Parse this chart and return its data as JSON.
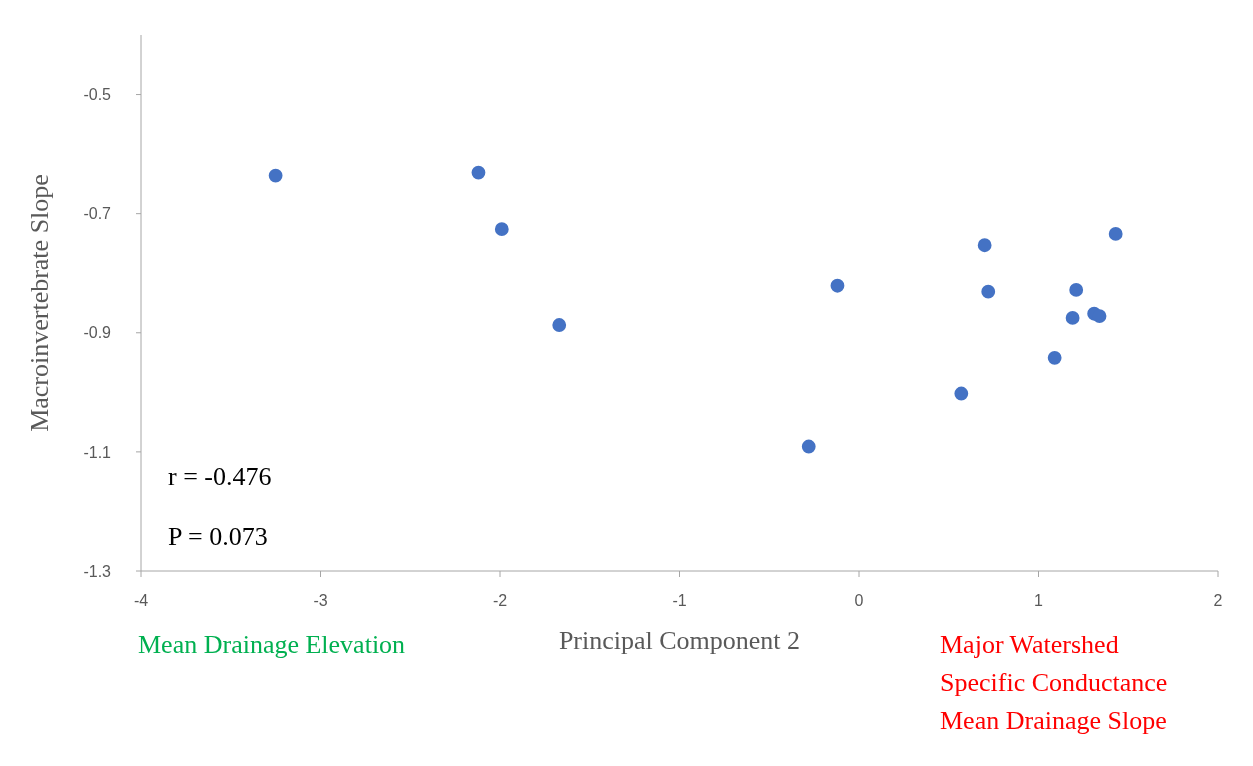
{
  "chart_data": {
    "type": "scatter",
    "xlabel": "Principal Component 2",
    "ylabel": "Macroinvertebrate Slope",
    "x": [
      -3.25,
      -2.12,
      -1.99,
      -1.67,
      -0.28,
      -0.12,
      0.57,
      0.7,
      0.72,
      1.09,
      1.19,
      1.21,
      1.31,
      1.34,
      1.43
    ],
    "values": [
      -0.636,
      -0.631,
      -0.726,
      -0.887,
      -1.091,
      -0.821,
      -1.002,
      -0.753,
      -0.831,
      -0.942,
      -0.875,
      -0.828,
      -0.868,
      -0.872,
      -0.734
    ],
    "color": "#4472c4",
    "marker": "circle",
    "xlim": [
      -4,
      2
    ],
    "xticks": [
      -4,
      -3,
      -2,
      -1,
      0,
      1,
      2
    ],
    "ylim": [
      -1.3,
      -0.4
    ],
    "yticks": [
      -1.3,
      -1.1,
      -0.9,
      -0.7,
      -0.5
    ],
    "annotations": [
      "r = -0.476",
      "P = 0.073",
      "Mean Drainage Elevation",
      "Major Watershed\nSpecific Conductance\nMean Drainage Slope"
    ]
  }
}
